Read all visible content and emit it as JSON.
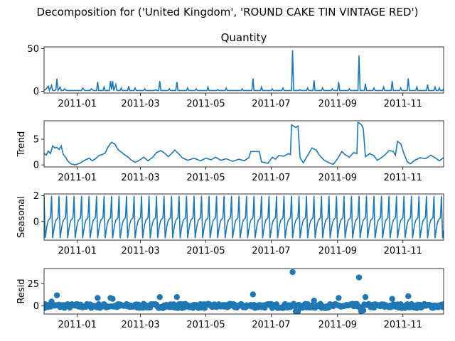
{
  "figure": {
    "suptitle": "Decomposition for ('United Kingdom', 'ROUND CAKE TIN VINTAGE RED')"
  },
  "chart_data": [
    {
      "type": "line",
      "title": "Quantity",
      "ylabel": "",
      "ylim": [
        -2,
        52
      ],
      "yticks": [
        0,
        50
      ],
      "x_start": "2010-12-01",
      "x_end": "2011-12-09",
      "xticks": [
        "2011-01",
        "2011-03",
        "2011-05",
        "2011-07",
        "2011-09",
        "2011-11"
      ],
      "color": "#1f77b4",
      "baseline": 1,
      "points": [
        [
          "2010-12-01",
          1
        ],
        [
          "2010-12-03",
          3
        ],
        [
          "2010-12-05",
          6
        ],
        [
          "2010-12-06",
          1
        ],
        [
          "2010-12-08",
          7
        ],
        [
          "2010-12-09",
          1
        ],
        [
          "2010-12-12",
          2
        ],
        [
          "2010-12-13",
          15
        ],
        [
          "2010-12-14",
          1
        ],
        [
          "2010-12-16",
          5
        ],
        [
          "2010-12-17",
          1
        ],
        [
          "2010-12-20",
          3
        ],
        [
          "2010-12-22",
          1
        ],
        [
          "2011-01-06",
          4
        ],
        [
          "2011-01-08",
          1
        ],
        [
          "2011-01-14",
          3
        ],
        [
          "2011-01-16",
          1
        ],
        [
          "2011-01-20",
          11
        ],
        [
          "2011-01-21",
          1
        ],
        [
          "2011-01-26",
          5
        ],
        [
          "2011-01-27",
          1
        ],
        [
          "2011-02-01",
          12
        ],
        [
          "2011-02-02",
          2
        ],
        [
          "2011-02-03",
          12
        ],
        [
          "2011-02-04",
          1
        ],
        [
          "2011-02-06",
          8
        ],
        [
          "2011-02-07",
          1
        ],
        [
          "2011-02-11",
          4
        ],
        [
          "2011-02-12",
          1
        ],
        [
          "2011-02-18",
          6
        ],
        [
          "2011-02-19",
          1
        ],
        [
          "2011-02-24",
          4
        ],
        [
          "2011-02-25",
          1
        ],
        [
          "2011-03-05",
          3
        ],
        [
          "2011-03-06",
          1
        ],
        [
          "2011-03-15",
          2
        ],
        [
          "2011-03-19",
          12
        ],
        [
          "2011-03-20",
          1
        ],
        [
          "2011-03-28",
          3
        ],
        [
          "2011-03-29",
          1
        ],
        [
          "2011-04-04",
          11
        ],
        [
          "2011-04-05",
          1
        ],
        [
          "2011-04-14",
          4
        ],
        [
          "2011-04-15",
          1
        ],
        [
          "2011-04-22",
          3
        ],
        [
          "2011-04-23",
          1
        ],
        [
          "2011-05-03",
          5
        ],
        [
          "2011-05-04",
          1
        ],
        [
          "2011-05-12",
          2
        ],
        [
          "2011-05-20",
          4
        ],
        [
          "2011-05-21",
          1
        ],
        [
          "2011-06-04",
          3
        ],
        [
          "2011-06-05",
          1
        ],
        [
          "2011-06-14",
          15
        ],
        [
          "2011-06-15",
          1
        ],
        [
          "2011-06-22",
          5
        ],
        [
          "2011-06-23",
          1
        ],
        [
          "2011-07-02",
          3
        ],
        [
          "2011-07-03",
          1
        ],
        [
          "2011-07-12",
          4
        ],
        [
          "2011-07-13",
          1
        ],
        [
          "2011-07-21",
          48
        ],
        [
          "2011-07-22",
          1
        ],
        [
          "2011-07-28",
          2
        ],
        [
          "2011-08-04",
          4
        ],
        [
          "2011-08-05",
          1
        ],
        [
          "2011-08-10",
          13
        ],
        [
          "2011-08-11",
          1
        ],
        [
          "2011-08-18",
          4
        ],
        [
          "2011-08-19",
          1
        ],
        [
          "2011-08-27",
          3
        ],
        [
          "2011-08-28",
          1
        ],
        [
          "2011-09-02",
          11
        ],
        [
          "2011-09-03",
          1
        ],
        [
          "2011-09-12",
          3
        ],
        [
          "2011-09-13",
          1
        ],
        [
          "2011-09-21",
          42
        ],
        [
          "2011-09-22",
          1
        ],
        [
          "2011-09-27",
          9
        ],
        [
          "2011-09-28",
          1
        ],
        [
          "2011-10-05",
          4
        ],
        [
          "2011-10-06",
          1
        ],
        [
          "2011-10-14",
          5
        ],
        [
          "2011-10-15",
          1
        ],
        [
          "2011-10-22",
          12
        ],
        [
          "2011-10-23",
          1
        ],
        [
          "2011-10-30",
          4
        ],
        [
          "2011-10-31",
          1
        ],
        [
          "2011-11-06",
          15
        ],
        [
          "2011-11-07",
          1
        ],
        [
          "2011-11-14",
          5
        ],
        [
          "2011-11-15",
          1
        ],
        [
          "2011-11-24",
          8
        ],
        [
          "2011-11-25",
          1
        ],
        [
          "2011-12-01",
          5
        ],
        [
          "2011-12-02",
          1
        ],
        [
          "2011-12-05",
          4
        ],
        [
          "2011-12-06",
          1
        ],
        [
          "2011-12-09",
          3
        ]
      ]
    },
    {
      "type": "line",
      "title": "",
      "ylabel": "Trend",
      "ylim": [
        -0.4,
        8.6
      ],
      "yticks": [
        0,
        5
      ],
      "x_start": "2010-12-01",
      "x_end": "2011-12-09",
      "xticks": [
        "2011-01",
        "2011-03",
        "2011-05",
        "2011-07",
        "2011-09",
        "2011-11"
      ],
      "color": "#1f77b4",
      "points": [
        [
          "2010-12-01",
          2.3
        ],
        [
          "2010-12-03",
          1.9
        ],
        [
          "2010-12-05",
          2.7
        ],
        [
          "2010-12-07",
          2.2
        ],
        [
          "2010-12-09",
          3.7
        ],
        [
          "2010-12-11",
          3.3
        ],
        [
          "2010-12-13",
          3.4
        ],
        [
          "2010-12-15",
          3.0
        ],
        [
          "2010-12-17",
          3.7
        ],
        [
          "2010-12-19",
          2.0
        ],
        [
          "2010-12-21",
          1.5
        ],
        [
          "2010-12-23",
          0.8
        ],
        [
          "2010-12-26",
          0.2
        ],
        [
          "2010-12-30",
          0.0
        ],
        [
          "2011-01-04",
          0.4
        ],
        [
          "2011-01-08",
          0.9
        ],
        [
          "2011-01-12",
          1.3
        ],
        [
          "2011-01-15",
          0.8
        ],
        [
          "2011-01-18",
          1.2
        ],
        [
          "2011-01-21",
          1.8
        ],
        [
          "2011-01-24",
          2.0
        ],
        [
          "2011-01-27",
          2.3
        ],
        [
          "2011-01-30",
          3.6
        ],
        [
          "2011-02-02",
          4.4
        ],
        [
          "2011-02-05",
          4.1
        ],
        [
          "2011-02-08",
          3.0
        ],
        [
          "2011-02-11",
          2.5
        ],
        [
          "2011-02-14",
          2.0
        ],
        [
          "2011-02-17",
          1.6
        ],
        [
          "2011-02-20",
          1.0
        ],
        [
          "2011-02-24",
          0.5
        ],
        [
          "2011-02-28",
          0.9
        ],
        [
          "2011-03-04",
          1.5
        ],
        [
          "2011-03-08",
          0.8
        ],
        [
          "2011-03-12",
          1.4
        ],
        [
          "2011-03-16",
          2.4
        ],
        [
          "2011-03-20",
          2.8
        ],
        [
          "2011-03-24",
          2.2
        ],
        [
          "2011-03-27",
          1.6
        ],
        [
          "2011-03-30",
          2.2
        ],
        [
          "2011-04-02",
          2.9
        ],
        [
          "2011-04-05",
          2.3
        ],
        [
          "2011-04-09",
          1.4
        ],
        [
          "2011-04-14",
          0.9
        ],
        [
          "2011-04-20",
          1.3
        ],
        [
          "2011-04-26",
          0.8
        ],
        [
          "2011-05-01",
          1.3
        ],
        [
          "2011-05-06",
          1.0
        ],
        [
          "2011-05-10",
          1.5
        ],
        [
          "2011-05-15",
          0.9
        ],
        [
          "2011-05-20",
          1.2
        ],
        [
          "2011-05-26",
          0.7
        ],
        [
          "2011-06-01",
          1.1
        ],
        [
          "2011-06-06",
          0.8
        ],
        [
          "2011-06-10",
          1.4
        ],
        [
          "2011-06-12",
          2.6
        ],
        [
          "2011-06-20",
          2.6
        ],
        [
          "2011-06-22",
          0.6
        ],
        [
          "2011-06-28",
          0.3
        ],
        [
          "2011-07-02",
          1.5
        ],
        [
          "2011-07-05",
          1.1
        ],
        [
          "2011-07-08",
          1.8
        ],
        [
          "2011-07-13",
          1.7
        ],
        [
          "2011-07-17",
          2.2
        ],
        [
          "2011-07-19",
          2.0
        ],
        [
          "2011-07-20",
          7.8
        ],
        [
          "2011-07-24",
          7.3
        ],
        [
          "2011-07-26",
          7.6
        ],
        [
          "2011-07-28",
          1.4
        ],
        [
          "2011-07-31",
          0.4
        ],
        [
          "2011-08-04",
          1.8
        ],
        [
          "2011-08-08",
          3.3
        ],
        [
          "2011-08-12",
          2.9
        ],
        [
          "2011-08-15",
          1.9
        ],
        [
          "2011-08-19",
          1.0
        ],
        [
          "2011-08-23",
          0.5
        ],
        [
          "2011-08-28",
          0.1
        ],
        [
          "2011-09-01",
          1.2
        ],
        [
          "2011-09-05",
          2.6
        ],
        [
          "2011-09-08",
          2.0
        ],
        [
          "2011-09-12",
          1.5
        ],
        [
          "2011-09-16",
          2.4
        ],
        [
          "2011-09-19",
          2.2
        ],
        [
          "2011-09-20",
          8.3
        ],
        [
          "2011-09-23",
          7.9
        ],
        [
          "2011-09-25",
          7.1
        ],
        [
          "2011-09-27",
          1.6
        ],
        [
          "2011-10-01",
          2.2
        ],
        [
          "2011-10-05",
          1.8
        ],
        [
          "2011-10-08",
          0.9
        ],
        [
          "2011-10-12",
          1.4
        ],
        [
          "2011-10-16",
          2.1
        ],
        [
          "2011-10-19",
          2.8
        ],
        [
          "2011-10-23",
          2.6
        ],
        [
          "2011-10-25",
          1.9
        ],
        [
          "2011-10-27",
          4.6
        ],
        [
          "2011-10-30",
          4.1
        ],
        [
          "2011-11-02",
          2.2
        ],
        [
          "2011-11-05",
          0.6
        ],
        [
          "2011-11-08",
          0.2
        ],
        [
          "2011-11-12",
          0.9
        ],
        [
          "2011-11-17",
          1.4
        ],
        [
          "2011-11-22",
          1.2
        ],
        [
          "2011-11-27",
          1.9
        ],
        [
          "2011-12-01",
          1.4
        ],
        [
          "2011-12-05",
          0.8
        ],
        [
          "2011-12-09",
          1.4
        ]
      ]
    },
    {
      "type": "line",
      "title": "",
      "ylabel": "Seasonal",
      "ylim": [
        -1.45,
        2.15
      ],
      "yticks": [
        0,
        2
      ],
      "x_start": "2010-12-01",
      "x_end": "2011-12-09",
      "xticks": [
        "2011-01",
        "2011-03",
        "2011-05",
        "2011-07",
        "2011-09",
        "2011-11"
      ],
      "color": "#1f77b4",
      "period_days": 7,
      "weekly_pattern": [
        2.0,
        -1.3,
        -0.7,
        -0.2,
        0.1,
        0.2,
        0.3
      ]
    },
    {
      "type": "scatter",
      "title": "",
      "ylabel": "Resid",
      "ylim": [
        -9,
        42
      ],
      "yticks": [
        0,
        25
      ],
      "x_start": "2010-12-01",
      "x_end": "2011-12-09",
      "xticks": [
        "2011-01",
        "2011-03",
        "2011-05",
        "2011-07",
        "2011-09",
        "2011-11"
      ],
      "color": "#1f77b4",
      "zero_line": true,
      "noise_amplitude": 3,
      "outliers": [
        [
          "2010-12-13",
          12
        ],
        [
          "2010-12-08",
          5
        ],
        [
          "2011-01-20",
          9
        ],
        [
          "2011-02-01",
          9
        ],
        [
          "2011-02-03",
          8
        ],
        [
          "2011-03-19",
          10
        ],
        [
          "2011-04-04",
          10
        ],
        [
          "2011-06-14",
          13
        ],
        [
          "2011-07-21",
          38
        ],
        [
          "2011-08-10",
          6
        ],
        [
          "2011-09-02",
          9
        ],
        [
          "2011-09-21",
          32
        ],
        [
          "2011-09-27",
          10
        ],
        [
          "2011-10-22",
          8
        ],
        [
          "2011-11-06",
          11
        ],
        [
          "2011-07-24",
          -6
        ],
        [
          "2011-07-26",
          -6
        ],
        [
          "2011-09-23",
          -6
        ],
        [
          "2011-09-25",
          -5
        ]
      ]
    }
  ]
}
